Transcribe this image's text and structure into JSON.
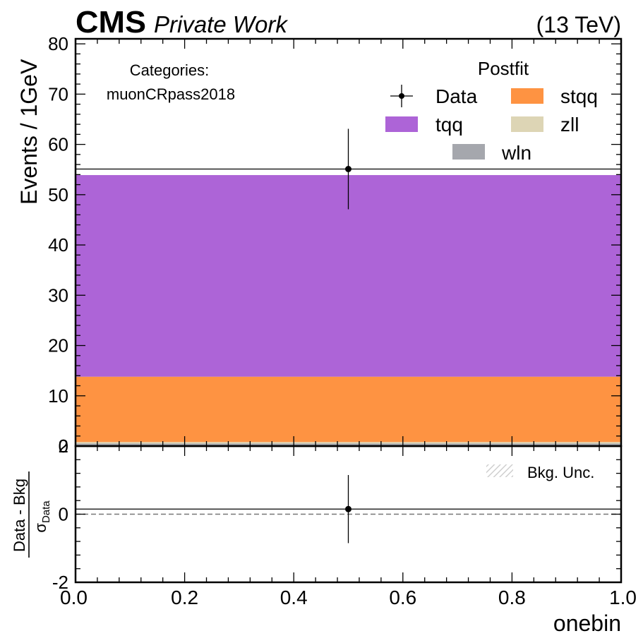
{
  "header": {
    "experiment": "CMS",
    "status": "Private Work",
    "energy": "(13 TeV)"
  },
  "chart_data": [
    {
      "type": "bar",
      "stacked": true,
      "xlim": [
        0.0,
        1.0
      ],
      "ylim": [
        0,
        81
      ],
      "ylabel": "Events / 1GeV",
      "yticks": [
        0,
        10,
        20,
        30,
        40,
        50,
        60,
        70,
        80
      ],
      "category_text": {
        "title": "Categories:",
        "name": "muonCRpass2018"
      },
      "legend_title": "Postfit",
      "legend_position": "top-right",
      "series": [
        {
          "name": "wln",
          "color": "#a5a7ad",
          "values": [
            0.5
          ]
        },
        {
          "name": "zll",
          "color": "#ddd5b5",
          "values": [
            0.3
          ]
        },
        {
          "name": "stqq",
          "color": "#fe9342",
          "values": [
            13.0
          ]
        },
        {
          "name": "tqq",
          "color": "#ad64d7",
          "values": [
            40.1
          ]
        }
      ],
      "total_mc": 53.9,
      "data_points": [
        {
          "name": "Data",
          "x": 0.5,
          "y": 55.1,
          "yerr": 8.0
        }
      ]
    },
    {
      "type": "scatter",
      "xlim": [
        0.0,
        1.0
      ],
      "ylim": [
        -2,
        2
      ],
      "xlabel": "onebin",
      "ylabel_numerator": "Data - Bkg",
      "ylabel_denominator_symbol": "σ",
      "ylabel_denominator_sub": "Data",
      "xticks": [
        "0.0",
        "0.2",
        "0.4",
        "0.6",
        "0.8",
        "1.0"
      ],
      "yticks": [
        -2,
        0,
        2
      ],
      "legend": [
        {
          "name": "Bkg. Unc."
        }
      ],
      "legend_position": "top-right",
      "points": [
        {
          "x": 0.5,
          "y": 0.15,
          "yerr": 1.0
        }
      ],
      "step_value": 0.15
    }
  ]
}
